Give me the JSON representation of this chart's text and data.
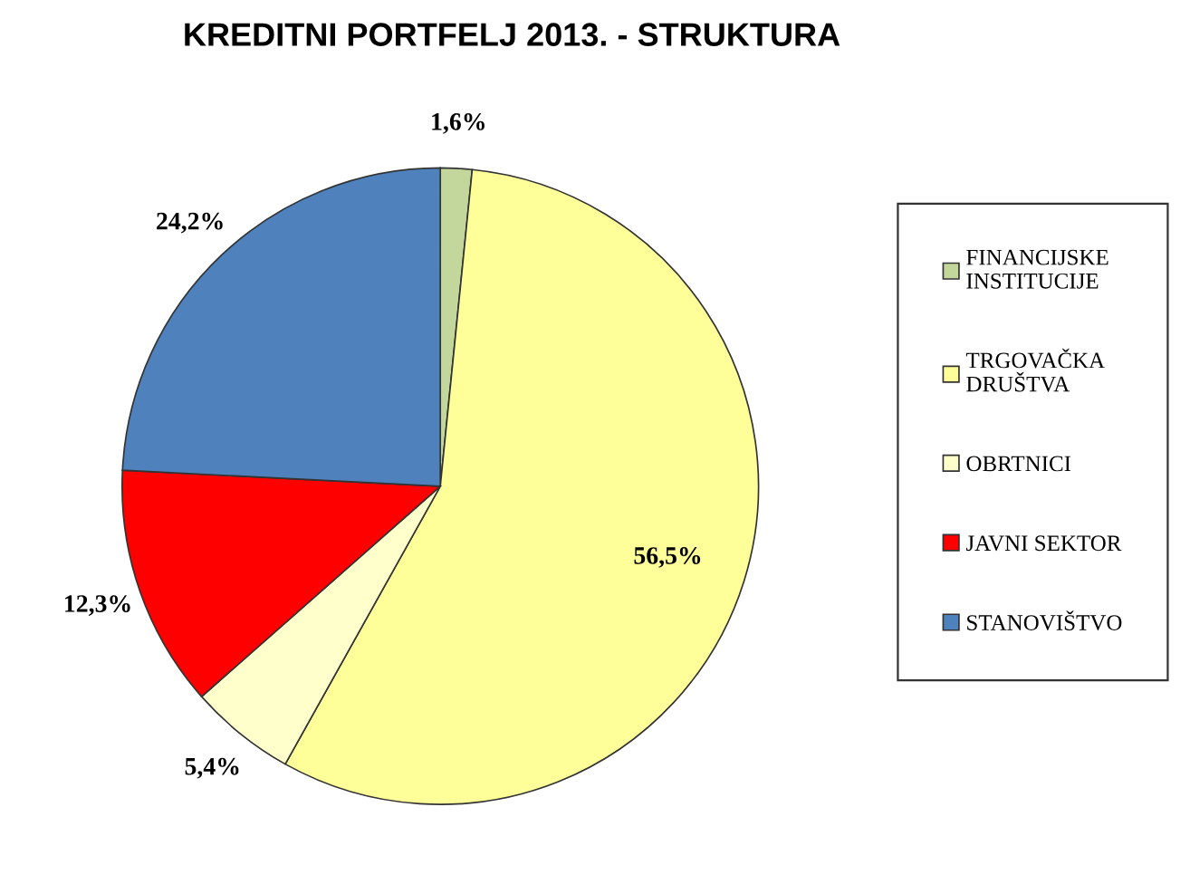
{
  "chart_data": {
    "type": "pie",
    "title": "KREDITNI PORTFELJ 2013. - STRUKTURA",
    "categories": [
      "FINANCIJSKE INSTITUCIJE",
      "TRGOVAČKA DRUŠTVA",
      "OBRTNICI",
      "JAVNI SEKTOR",
      "STANOVIŠTVO"
    ],
    "values": [
      1.6,
      56.5,
      5.4,
      12.3,
      24.2
    ],
    "value_labels": [
      "1,6%",
      "56,5%",
      "5,4%",
      "12,3%",
      "24,2%"
    ],
    "colors": [
      "#c3d69b",
      "#ffff99",
      "#ffffcc",
      "#ff0000",
      "#4f81bd"
    ],
    "legend": "right"
  }
}
